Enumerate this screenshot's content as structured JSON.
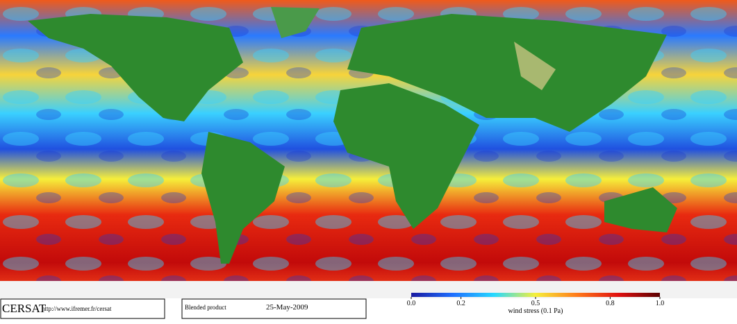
{
  "footer": {
    "logo": "CERSAT",
    "url": "http://www.ifremer.fr/cersat",
    "product": "Blended product",
    "date": "25-May-2009"
  },
  "colorbar": {
    "label": "wind stress (0.1 Pa)",
    "ticks": [
      {
        "value": 0,
        "label": "0.0"
      },
      0.2,
      0.5,
      0.8,
      {
        "value": 1,
        "label": "1.0"
      }
    ],
    "colors": [
      "#1a1aa0",
      "#1f6fff",
      "#26d9ff",
      "#f6ef3a",
      "#ff7a1a",
      "#e01010",
      "#5a0000"
    ]
  }
}
